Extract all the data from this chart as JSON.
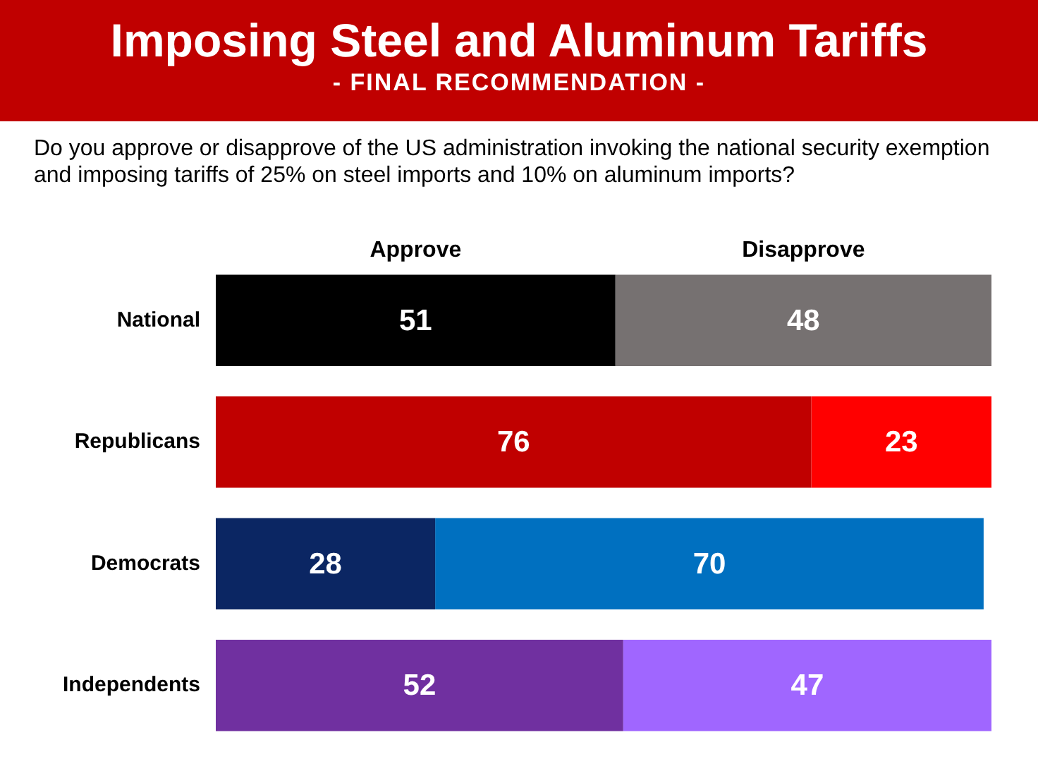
{
  "chart_data": {
    "type": "bar",
    "orientation": "horizontal",
    "stacked": true,
    "title": "Imposing Steel and Aluminum Tariffs",
    "subtitle": "- FINAL RECOMMENDATION -",
    "annotations": [
      "Do you approve or disapprove of the US administration invoking the national security exemption and imposing tariffs of 25% on steel imports and 10% on aluminum imports?"
    ],
    "categories": [
      "National",
      "Republicans",
      "Democrats",
      "Independents"
    ],
    "series": [
      {
        "name": "Approve",
        "colors": [
          "#000000",
          "#c00000",
          "#0b2663",
          "#7030a0"
        ],
        "values": [
          51,
          76,
          28,
          52
        ]
      },
      {
        "name": "Disapprove",
        "colors": [
          "#767171",
          "#ff0000",
          "#0070c0",
          "#a066ff"
        ],
        "values": [
          48,
          23,
          70,
          47
        ]
      }
    ],
    "xlim": [
      0,
      99
    ],
    "tick_labels": "y",
    "data_labels": true,
    "legend": false
  }
}
